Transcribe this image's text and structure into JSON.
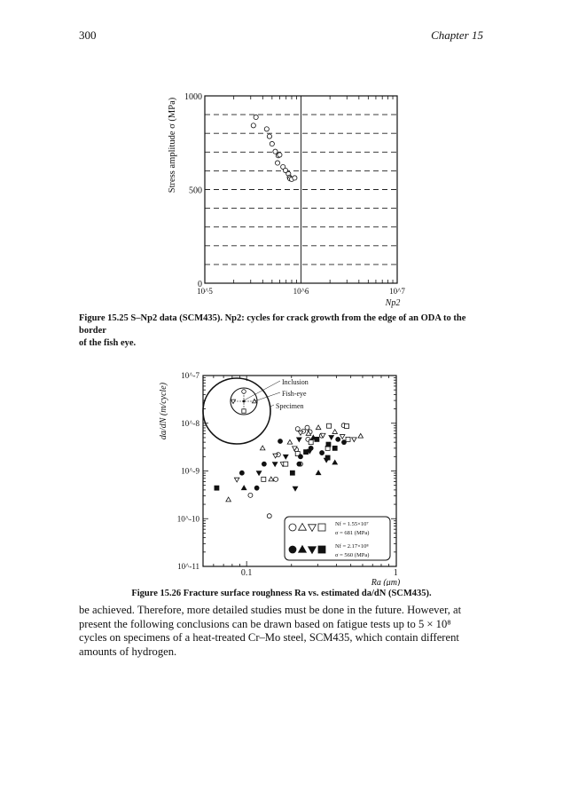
{
  "header": {
    "page_number": "300",
    "chapter": "Chapter 15"
  },
  "figure1": {
    "caption_line1": "Figure 15.25 S–Np2 data (SCM435). Np2: cycles for crack growth from the edge of an ODA to the border",
    "caption_line2": "of the fish eye."
  },
  "figure2": {
    "caption": "Figure 15.26 Fracture surface roughness Ra vs. estimated da/dN (SCM435)."
  },
  "body_text": [
    "be achieved. Therefore, more detailed studies must be done in the future. However, at",
    "present the following conclusions can be drawn based on fatigue tests up to 5 × 10⁸",
    "cycles on specimens of a heat-treated Cr–Mo steel, SCM435, which contain different",
    "amounts of hydrogen."
  ],
  "chart_data": [
    {
      "type": "scatter",
      "ylabel": "Stress amplitude σ (MPa)",
      "xlabel": "Np2",
      "x_scale": "log",
      "xlim": [
        100000,
        10000000
      ],
      "ylim": [
        0,
        1000
      ],
      "x_tick_labels": [
        "10^5",
        "10^6",
        "10^7"
      ],
      "y_tick_labels": [
        "0",
        "500",
        "1000"
      ],
      "grid": "dashed horizontal every 100 MPa, solid vertical at 10^6",
      "marker": "open-circle",
      "points": [
        [
          320000,
          842
        ],
        [
          340000,
          886
        ],
        [
          440000,
          823
        ],
        [
          470000,
          784
        ],
        [
          500000,
          744
        ],
        [
          540000,
          703
        ],
        [
          580000,
          681
        ],
        [
          600000,
          685
        ],
        [
          570000,
          642
        ],
        [
          650000,
          621
        ],
        [
          690000,
          602
        ],
        [
          740000,
          584
        ],
        [
          760000,
          565
        ],
        [
          770000,
          558
        ],
        [
          800000,
          555
        ],
        [
          860000,
          562
        ]
      ]
    },
    {
      "type": "scatter",
      "ylabel": "da/dN (m/cycle)",
      "xlabel": "Ra (μm)",
      "x_scale": "log",
      "y_scale": "log",
      "xlim": [
        0.051,
        1.01
      ],
      "ylim": [
        1e-11,
        1e-07
      ],
      "x_tick_labels": [
        "0.1",
        "1"
      ],
      "y_tick_labels": [
        "10^-7",
        "10^-8",
        "10^-9",
        "10^-10",
        "10^-11"
      ],
      "inset_labels": [
        "Inclusion",
        "Fish-eye",
        "Specimen"
      ],
      "legend": [
        {
          "markers": "open",
          "line1": "Nf = 1.55×10⁷",
          "line2": "σ = 681 (MPa)"
        },
        {
          "markers": "filled",
          "line1": "Nf = 2.17×10⁸",
          "line2": "σ = 560 (MPa)"
        }
      ],
      "legend_placement": "bottom-right",
      "series": [
        {
          "marker": "open-circle",
          "points": [
            [
              0.106,
              3.1e-10
            ],
            [
              0.142,
              1.14e-10
            ],
            [
              0.157,
              6.7e-10
            ],
            [
              0.163,
              2.2e-09
            ],
            [
              0.22,
              7.6e-09
            ],
            [
              0.255,
              8.1e-09
            ],
            [
              0.266,
              6.6e-09
            ],
            [
              0.24,
              6.8e-09
            ],
            [
              0.258,
              4.6e-09
            ],
            [
              0.319,
              5.5e-09
            ],
            [
              0.448,
              9e-09
            ],
            [
              0.215,
              2.8e-09
            ],
            [
              0.23,
              1.4e-09
            ]
          ]
        },
        {
          "marker": "open-triangle-up",
          "points": [
            [
              0.0755,
              2.5e-10
            ],
            [
              0.146,
              6.7e-10
            ],
            [
              0.128,
              3e-09
            ],
            [
              0.195,
              4e-09
            ],
            [
              0.303,
              8.1e-09
            ],
            [
              0.26,
              6.1e-09
            ],
            [
              0.391,
              6.6e-09
            ],
            [
              0.582,
              5.4e-09
            ]
          ]
        },
        {
          "marker": "open-triangle-down",
          "points": [
            [
              0.086,
              6.6e-10
            ],
            [
              0.156,
              2.1e-09
            ],
            [
              0.23,
              6.3e-09
            ],
            [
              0.325,
              5.6e-09
            ],
            [
              0.526,
              4.6e-09
            ],
            [
              0.439,
              5.3e-09
            ],
            [
              0.175,
              1.4e-09
            ],
            [
              0.21,
              3e-09
            ]
          ]
        },
        {
          "marker": "open-square",
          "points": [
            [
              0.13,
              6.7e-10
            ],
            [
              0.183,
              1.4e-09
            ],
            [
              0.22,
              2.3e-09
            ],
            [
              0.357,
              8.8e-09
            ],
            [
              0.469,
              8.7e-09
            ],
            [
              0.479,
              4.6e-09
            ],
            [
              0.27,
              4e-09
            ],
            [
              0.35,
              3e-09
            ]
          ]
        },
        {
          "marker": "filled-circle",
          "points": [
            [
              0.093,
              9.1e-10
            ],
            [
              0.117,
              4.4e-10
            ],
            [
              0.131,
              1.4e-09
            ],
            [
              0.168,
              4.2e-09
            ],
            [
              0.23,
              2e-09
            ],
            [
              0.225,
              1.4e-09
            ],
            [
              0.27,
              3e-09
            ],
            [
              0.32,
              2.4e-09
            ],
            [
              0.41,
              4.6e-09
            ],
            [
              0.45,
              4e-09
            ]
          ]
        },
        {
          "marker": "filled-triangle-up",
          "points": [
            [
              0.096,
              4.4e-10
            ],
            [
              0.303,
              9.1e-10
            ],
            [
              0.391,
              1.5e-09
            ],
            [
              0.28,
              5e-09
            ]
          ]
        },
        {
          "marker": "filled-triangle-down",
          "points": [
            [
              0.121,
              9.1e-10
            ],
            [
              0.155,
              1.4e-09
            ],
            [
              0.183,
              2e-09
            ],
            [
              0.212,
              4.3e-10
            ],
            [
              0.225,
              4.6e-09
            ],
            [
              0.343,
              1.7e-09
            ],
            [
              0.37,
              5.1e-09
            ],
            [
              0.265,
              2.6e-09
            ]
          ]
        },
        {
          "marker": "filled-square",
          "points": [
            [
              0.063,
              4.4e-10
            ],
            [
              0.203,
              9.1e-10
            ],
            [
              0.25,
              2.5e-09
            ],
            [
              0.35,
              1.9e-09
            ],
            [
              0.354,
              3.6e-09
            ],
            [
              0.391,
              3e-09
            ],
            [
              0.296,
              4.6e-09
            ]
          ]
        }
      ]
    }
  ]
}
